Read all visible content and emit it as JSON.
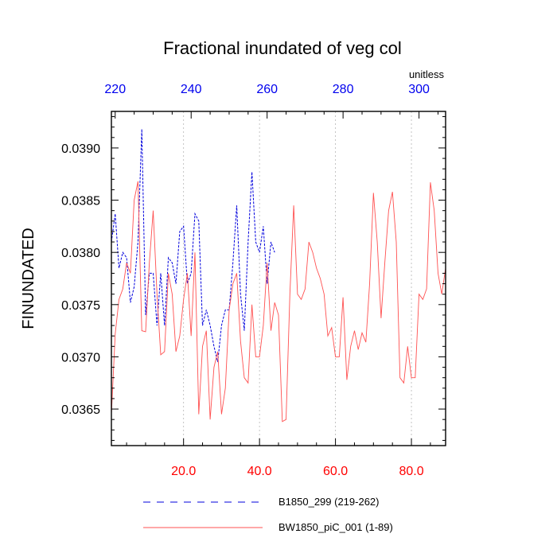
{
  "chart_data": {
    "type": "line",
    "title": "Fractional inundated of veg col",
    "units_label": "unitless",
    "ylabel": "FINUNDATED",
    "xlabel": "",
    "ylim": [
      0.03615,
      0.03935
    ],
    "y_ticks": [
      "0.0365",
      "0.0370",
      "0.0375",
      "0.0380",
      "0.0385",
      "0.0390"
    ],
    "y_tick_values": [
      0.0365,
      0.037,
      0.0375,
      0.038,
      0.0385,
      0.039
    ],
    "bottom_axis": {
      "xlim": [
        1,
        89
      ],
      "ticks": [
        20,
        40,
        60,
        80
      ],
      "tick_labels": [
        "20.0",
        "40.0",
        "60.0",
        "80.0"
      ],
      "color": "#ff0000"
    },
    "top_axis": {
      "xlim": [
        219,
        307
      ],
      "ticks": [
        220,
        240,
        260,
        280,
        300
      ],
      "tick_labels": [
        "220",
        "240",
        "260",
        "280",
        "300"
      ],
      "color": "#0000ee"
    },
    "grid": "vertical dotted at bottom-axis major ticks",
    "legend_position": "bottom",
    "series": [
      {
        "name": "B1850_299 (219-262)",
        "axis": "top",
        "style": "dashed",
        "color": "#0000dd",
        "x": [
          219,
          220,
          221,
          222,
          223,
          224,
          225,
          226,
          227,
          228,
          229,
          230,
          231,
          232,
          233,
          234,
          235,
          236,
          237,
          238,
          239,
          240,
          241,
          242,
          243,
          244,
          245,
          246,
          247,
          248,
          249,
          250,
          251,
          252,
          253,
          254,
          255,
          256,
          257,
          258,
          259,
          260,
          261,
          262
        ],
        "values": [
          0.0381,
          0.03837,
          0.03785,
          0.038,
          0.03795,
          0.03752,
          0.03767,
          0.0381,
          0.03918,
          0.0374,
          0.0378,
          0.0378,
          0.0373,
          0.0378,
          0.0373,
          0.03795,
          0.0379,
          0.0377,
          0.0382,
          0.03825,
          0.0377,
          0.0378,
          0.03837,
          0.0383,
          0.0373,
          0.03745,
          0.0373,
          0.0371,
          0.03695,
          0.0373,
          0.03745,
          0.03745,
          0.0379,
          0.03845,
          0.0376,
          0.03725,
          0.0381,
          0.03877,
          0.0381,
          0.038,
          0.03825,
          0.0377,
          0.0381,
          0.038
        ]
      },
      {
        "name": "BW1850_piC_001 (1-89)",
        "axis": "bottom",
        "style": "solid",
        "color": "#ff5050",
        "x": [
          1,
          2,
          3,
          4,
          5,
          6,
          7,
          8,
          9,
          10,
          11,
          12,
          13,
          14,
          15,
          16,
          17,
          18,
          19,
          20,
          21,
          22,
          23,
          24,
          25,
          26,
          27,
          28,
          29,
          30,
          31,
          32,
          33,
          34,
          35,
          36,
          37,
          38,
          39,
          40,
          41,
          42,
          43,
          44,
          45,
          46,
          47,
          48,
          49,
          50,
          51,
          52,
          53,
          54,
          55,
          56,
          57,
          58,
          59,
          60,
          61,
          62,
          63,
          64,
          65,
          66,
          67,
          68,
          69,
          70,
          71,
          72,
          73,
          74,
          75,
          76,
          77,
          78,
          79,
          80,
          81,
          82,
          83,
          84,
          85,
          86,
          87,
          88,
          89
        ],
        "values": [
          0.03645,
          0.03722,
          0.03755,
          0.03765,
          0.0379,
          0.0378,
          0.0385,
          0.03868,
          0.03725,
          0.03724,
          0.0379,
          0.0384,
          0.0376,
          0.03702,
          0.03705,
          0.0378,
          0.0376,
          0.03705,
          0.0372,
          0.03755,
          0.0378,
          0.0372,
          0.038,
          0.03645,
          0.0371,
          0.03725,
          0.0364,
          0.0369,
          0.03705,
          0.03645,
          0.0367,
          0.03745,
          0.0377,
          0.0378,
          0.03715,
          0.0368,
          0.03675,
          0.0375,
          0.037,
          0.037,
          0.0373,
          0.0379,
          0.03725,
          0.03752,
          0.0374,
          0.03638,
          0.0364,
          0.0376,
          0.03845,
          0.0376,
          0.03755,
          0.03765,
          0.0381,
          0.038,
          0.03785,
          0.03775,
          0.0376,
          0.0372,
          0.03728,
          0.037,
          0.037,
          0.03757,
          0.03678,
          0.0371,
          0.03725,
          0.03707,
          0.03723,
          0.03714,
          0.0377,
          0.03857,
          0.0381,
          0.03737,
          0.0379,
          0.0384,
          0.03858,
          0.0381,
          0.0368,
          0.03675,
          0.0371,
          0.0368,
          0.0368,
          0.0376,
          0.03755,
          0.03765,
          0.03867,
          0.0384,
          0.0378,
          0.0376,
          0.03785
        ]
      }
    ]
  }
}
